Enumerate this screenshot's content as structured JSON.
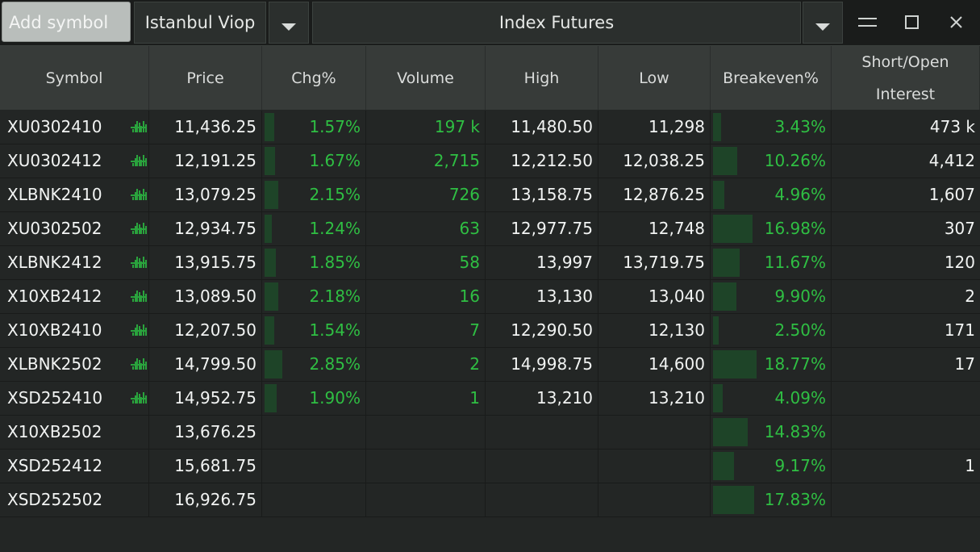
{
  "toolbar": {
    "search_placeholder": "Add symbol",
    "exchange": "Istanbul Viop",
    "list": "Index Futures",
    "minimize": "—",
    "maximize": "□",
    "close": "✕"
  },
  "columns": [
    {
      "key": "symbol",
      "label": "Symbol"
    },
    {
      "key": "price",
      "label": "Price"
    },
    {
      "key": "chg",
      "label": "Chg%"
    },
    {
      "key": "volume",
      "label": "Volume"
    },
    {
      "key": "high",
      "label": "High"
    },
    {
      "key": "low",
      "label": "Low"
    },
    {
      "key": "breakeven",
      "label": "Breakeven%"
    },
    {
      "key": "oi",
      "label": "Short/Open Interest"
    }
  ],
  "colors": {
    "accent": "#2fbf43",
    "bar": "#1e4428",
    "header": "#373b39"
  },
  "rows": [
    {
      "symbol": "XU0302410",
      "spark": true,
      "price": "11,436.25",
      "chg": "1.57%",
      "chg_bar": 0.55,
      "volume": "197 k",
      "volume_green": true,
      "high": "11,480.50",
      "low": "11,298",
      "breakeven": "3.43%",
      "be_bar": 0.18,
      "oi": "473 k"
    },
    {
      "symbol": "XU0302412",
      "spark": true,
      "price": "12,191.25",
      "chg": "1.67%",
      "chg_bar": 0.58,
      "volume": "2,715",
      "volume_green": true,
      "high": "12,212.50",
      "low": "12,038.25",
      "breakeven": "10.26%",
      "be_bar": 0.55,
      "oi": "4,412"
    },
    {
      "symbol": "XLBNK2410",
      "spark": true,
      "price": "13,079.25",
      "chg": "2.15%",
      "chg_bar": 0.75,
      "volume": "726",
      "volume_green": true,
      "high": "13,158.75",
      "low": "12,876.25",
      "breakeven": "4.96%",
      "be_bar": 0.26,
      "oi": "1,607"
    },
    {
      "symbol": "XU0302502",
      "spark": true,
      "price": "12,934.75",
      "chg": "1.24%",
      "chg_bar": 0.43,
      "volume": "63",
      "volume_green": true,
      "high": "12,977.75",
      "low": "12,748",
      "breakeven": "16.98%",
      "be_bar": 0.9,
      "oi": "307"
    },
    {
      "symbol": "XLBNK2412",
      "spark": true,
      "price": "13,915.75",
      "chg": "1.85%",
      "chg_bar": 0.65,
      "volume": "58",
      "volume_green": true,
      "high": "13,997",
      "low": "13,719.75",
      "breakeven": "11.67%",
      "be_bar": 0.62,
      "oi": "120"
    },
    {
      "symbol": "X10XB2412",
      "spark": true,
      "price": "13,089.50",
      "chg": "2.18%",
      "chg_bar": 0.76,
      "volume": "16",
      "volume_green": true,
      "high": "13,130",
      "low": "13,040",
      "breakeven": "9.90%",
      "be_bar": 0.53,
      "oi": "2"
    },
    {
      "symbol": "X10XB2410",
      "spark": true,
      "price": "12,207.50",
      "chg": "1.54%",
      "chg_bar": 0.54,
      "volume": "7",
      "volume_green": true,
      "high": "12,290.50",
      "low": "12,130",
      "breakeven": "2.50%",
      "be_bar": 0.13,
      "oi": "171"
    },
    {
      "symbol": "XLBNK2502",
      "spark": true,
      "price": "14,799.50",
      "chg": "2.85%",
      "chg_bar": 1.0,
      "volume": "2",
      "volume_green": true,
      "high": "14,998.75",
      "low": "14,600",
      "breakeven": "18.77%",
      "be_bar": 1.0,
      "oi": "17"
    },
    {
      "symbol": "XSD252410",
      "spark": true,
      "price": "14,952.75",
      "chg": "1.90%",
      "chg_bar": 0.67,
      "volume": "1",
      "volume_green": true,
      "high": "13,210",
      "low": "13,210",
      "breakeven": "4.09%",
      "be_bar": 0.22,
      "oi": ""
    },
    {
      "symbol": "X10XB2502",
      "spark": false,
      "price": "13,676.25",
      "chg": "",
      "chg_bar": 0,
      "volume": "",
      "volume_green": false,
      "high": "",
      "low": "",
      "breakeven": "14.83%",
      "be_bar": 0.79,
      "oi": ""
    },
    {
      "symbol": "XSD252412",
      "spark": false,
      "price": "15,681.75",
      "chg": "",
      "chg_bar": 0,
      "volume": "",
      "volume_green": false,
      "high": "",
      "low": "",
      "breakeven": "9.17%",
      "be_bar": 0.49,
      "oi": "1"
    },
    {
      "symbol": "XSD252502",
      "spark": false,
      "price": "16,926.75",
      "chg": "",
      "chg_bar": 0,
      "volume": "",
      "volume_green": false,
      "high": "",
      "low": "",
      "breakeven": "17.83%",
      "be_bar": 0.95,
      "oi": ""
    }
  ]
}
